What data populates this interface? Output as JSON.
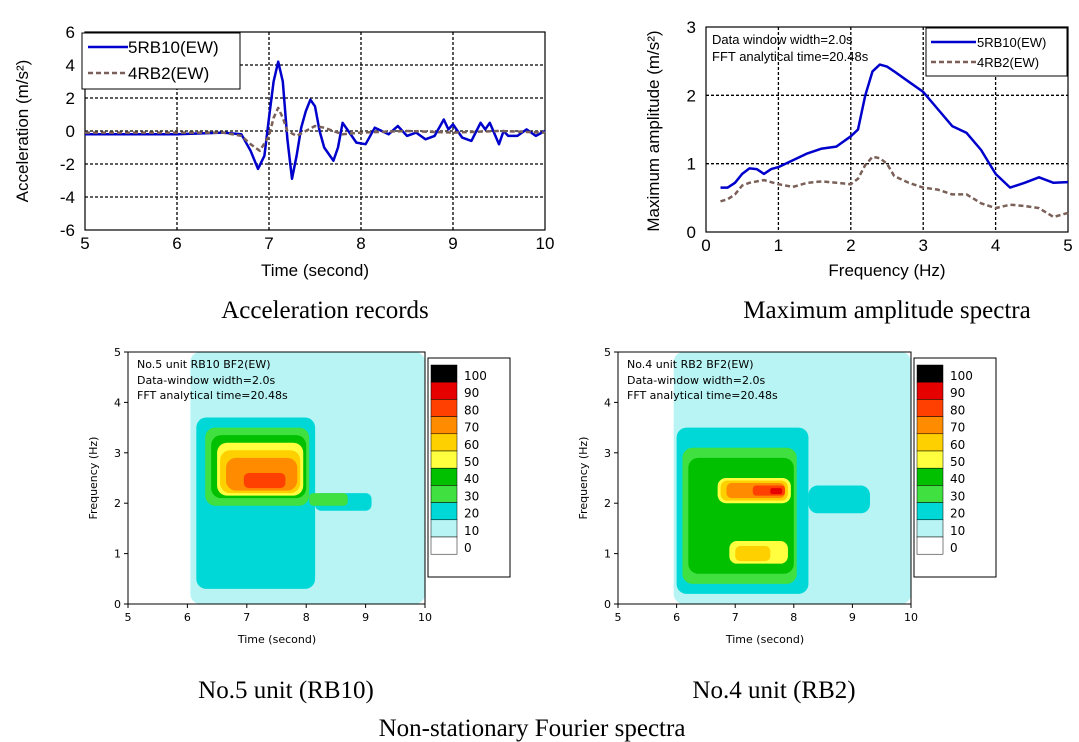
{
  "chart_data": [
    {
      "type": "line",
      "caption": "Acceleration records",
      "xlabel": "Time (second)",
      "ylabel": "Acceleration (m/s²)",
      "xlim": [
        5,
        10
      ],
      "ylim": [
        -6,
        6
      ],
      "xticks": [
        "5",
        "6",
        "7",
        "8",
        "9",
        "10"
      ],
      "yticks": [
        "6",
        "4",
        "2",
        "0",
        "-2",
        "-4",
        "-6"
      ],
      "grid": true,
      "legend_position": "top-left",
      "series": [
        {
          "name": "5RB10(EW)",
          "color": "#0000cc",
          "style": "solid",
          "x": [
            5.0,
            5.5,
            6.0,
            6.5,
            6.7,
            6.8,
            6.88,
            6.95,
            7.0,
            7.05,
            7.1,
            7.15,
            7.2,
            7.25,
            7.3,
            7.35,
            7.4,
            7.45,
            7.5,
            7.55,
            7.6,
            7.7,
            7.75,
            7.8,
            7.85,
            7.95,
            8.05,
            8.15,
            8.3,
            8.4,
            8.5,
            8.6,
            8.7,
            8.8,
            8.9,
            8.95,
            9.0,
            9.1,
            9.2,
            9.3,
            9.35,
            9.4,
            9.5,
            9.55,
            9.6,
            9.7,
            9.8,
            9.9,
            10.0
          ],
          "y": [
            -0.2,
            -0.2,
            -0.2,
            -0.1,
            -0.2,
            -1.2,
            -2.3,
            -1.5,
            0.8,
            3.0,
            4.2,
            3.0,
            -0.5,
            -2.9,
            -1.5,
            0.2,
            1.2,
            1.9,
            1.5,
            0.0,
            -1.0,
            -1.8,
            -1.0,
            0.5,
            0.1,
            -0.7,
            -0.8,
            0.2,
            -0.2,
            0.3,
            -0.3,
            -0.1,
            -0.5,
            -0.3,
            0.7,
            0.1,
            0.4,
            -0.4,
            -0.6,
            0.5,
            0.1,
            0.5,
            -0.8,
            0.0,
            -0.3,
            -0.3,
            0.1,
            -0.3,
            0.0
          ]
        },
        {
          "name": "4RB2(EW)",
          "color": "#7a6058",
          "style": "dashed",
          "x": [
            5.0,
            6.0,
            6.5,
            6.7,
            6.8,
            6.9,
            7.0,
            7.05,
            7.1,
            7.15,
            7.2,
            7.3,
            7.4,
            7.5,
            7.6,
            7.8,
            8.0,
            8.5,
            9.0,
            9.5,
            10.0
          ],
          "y": [
            -0.1,
            -0.1,
            -0.1,
            -0.3,
            -0.8,
            -1.2,
            -0.3,
            0.8,
            1.4,
            0.8,
            0.0,
            -0.3,
            0.0,
            0.3,
            0.2,
            -0.2,
            -0.1,
            0.0,
            -0.1,
            0.0,
            -0.1
          ]
        }
      ]
    },
    {
      "type": "line",
      "caption": "Maximum amplitude spectra",
      "xlabel": "Frequency (Hz)",
      "ylabel": "Maximum amplitude (m/s²)",
      "xlim": [
        0,
        5
      ],
      "ylim": [
        0,
        3
      ],
      "xticks": [
        "0",
        "1",
        "2",
        "3",
        "4",
        "5"
      ],
      "yticks": [
        "3",
        "2",
        "1",
        "0"
      ],
      "grid": true,
      "annotations": [
        "Data window width=2.0s",
        "FFT analytical time=20.48s"
      ],
      "legend_position": "top-right",
      "series": [
        {
          "name": "5RB10(EW)",
          "color": "#0000cc",
          "style": "solid",
          "x": [
            0.2,
            0.3,
            0.4,
            0.5,
            0.6,
            0.7,
            0.8,
            0.9,
            1.0,
            1.2,
            1.4,
            1.6,
            1.8,
            2.0,
            2.1,
            2.2,
            2.3,
            2.4,
            2.5,
            2.6,
            2.8,
            3.0,
            3.2,
            3.4,
            3.6,
            3.8,
            4.0,
            4.2,
            4.4,
            4.6,
            4.8,
            5.0
          ],
          "y": [
            0.65,
            0.65,
            0.72,
            0.85,
            0.93,
            0.92,
            0.85,
            0.92,
            0.95,
            1.05,
            1.15,
            1.22,
            1.25,
            1.4,
            1.5,
            2.0,
            2.35,
            2.45,
            2.42,
            2.35,
            2.2,
            2.05,
            1.8,
            1.55,
            1.45,
            1.2,
            0.85,
            0.65,
            0.72,
            0.8,
            0.72,
            0.73
          ]
        },
        {
          "name": "4RB2(EW)",
          "color": "#7a6058",
          "style": "dashed",
          "x": [
            0.2,
            0.3,
            0.4,
            0.5,
            0.6,
            0.8,
            1.0,
            1.2,
            1.4,
            1.6,
            1.8,
            2.0,
            2.1,
            2.2,
            2.3,
            2.4,
            2.5,
            2.6,
            2.8,
            3.0,
            3.2,
            3.4,
            3.6,
            3.8,
            4.0,
            4.2,
            4.4,
            4.6,
            4.8,
            5.0
          ],
          "y": [
            0.45,
            0.48,
            0.55,
            0.68,
            0.72,
            0.76,
            0.7,
            0.66,
            0.72,
            0.74,
            0.72,
            0.7,
            0.78,
            0.98,
            1.1,
            1.08,
            1.0,
            0.82,
            0.72,
            0.65,
            0.62,
            0.55,
            0.55,
            0.42,
            0.35,
            0.4,
            0.38,
            0.35,
            0.22,
            0.28
          ]
        }
      ]
    },
    {
      "type": "heatmap",
      "caption": "No.5 unit (RB10)",
      "annotations": [
        "No.5 unit RB10 BF2(EW)",
        "Data-window width=2.0s",
        "FFT analytical time=20.48s"
      ],
      "xlabel": "Time (second)",
      "ylabel": "Frequency (Hz)",
      "xlim": [
        5,
        10
      ],
      "ylim": [
        0,
        5
      ],
      "xticks": [
        "5",
        "6",
        "7",
        "8",
        "9",
        "10"
      ],
      "yticks": [
        "5",
        "4",
        "3",
        "2",
        "1",
        "0"
      ],
      "levels": [
        "100",
        "90",
        "80",
        "70",
        "60",
        "50",
        "40",
        "30",
        "20",
        "10",
        "0"
      ],
      "level_colors": [
        "#000000",
        "#e60000",
        "#ff4000",
        "#ff8c00",
        "#ffd000",
        "#ffff40",
        "#00c000",
        "#40e040",
        "#00d8d8",
        "#b8f4f4",
        "#ffffff"
      ],
      "regions": [
        {
          "level": 10,
          "t": [
            6.05,
            10.0
          ],
          "f": [
            0.0,
            5.0
          ]
        },
        {
          "level": 20,
          "t": [
            6.15,
            8.15
          ],
          "f": [
            0.3,
            3.7
          ]
        },
        {
          "level": 20,
          "t": [
            8.15,
            9.1
          ],
          "f": [
            1.85,
            2.2
          ]
        },
        {
          "level": 30,
          "t": [
            6.3,
            8.05
          ],
          "f": [
            1.95,
            3.5
          ]
        },
        {
          "level": 30,
          "t": [
            8.05,
            8.7
          ],
          "f": [
            1.95,
            2.2
          ]
        },
        {
          "level": 40,
          "t": [
            6.4,
            8.0
          ],
          "f": [
            2.1,
            3.35
          ]
        },
        {
          "level": 50,
          "t": [
            6.5,
            7.95
          ],
          "f": [
            2.15,
            3.2
          ]
        },
        {
          "level": 60,
          "t": [
            6.55,
            7.9
          ],
          "f": [
            2.2,
            3.05
          ]
        },
        {
          "level": 70,
          "t": [
            6.65,
            7.85
          ],
          "f": [
            2.25,
            2.9
          ]
        },
        {
          "level": 80,
          "t": [
            6.95,
            7.65
          ],
          "f": [
            2.3,
            2.6
          ]
        }
      ]
    },
    {
      "type": "heatmap",
      "caption": "No.4 unit (RB2)",
      "annotations": [
        "No.4 unit RB2 BF2(EW)",
        "Data-window width=2.0s",
        "FFT analytical time=20.48s"
      ],
      "xlabel": "Time (second)",
      "ylabel": "Frequency (Hz)",
      "xlim": [
        5,
        10
      ],
      "ylim": [
        0,
        5
      ],
      "xticks": [
        "5",
        "6",
        "7",
        "8",
        "9",
        "10"
      ],
      "yticks": [
        "5",
        "4",
        "3",
        "2",
        "1",
        "0"
      ],
      "levels": [
        "100",
        "90",
        "80",
        "70",
        "60",
        "50",
        "40",
        "30",
        "20",
        "10",
        "0"
      ],
      "level_colors": [
        "#000000",
        "#e60000",
        "#ff4000",
        "#ff8c00",
        "#ffd000",
        "#ffff40",
        "#00c000",
        "#40e040",
        "#00d8d8",
        "#b8f4f4",
        "#ffffff"
      ],
      "regions": [
        {
          "level": 10,
          "t": [
            5.95,
            10.0
          ],
          "f": [
            0.0,
            5.0
          ]
        },
        {
          "level": 20,
          "t": [
            6.0,
            8.25
          ],
          "f": [
            0.2,
            3.5
          ]
        },
        {
          "level": 20,
          "t": [
            8.25,
            9.3
          ],
          "f": [
            1.8,
            2.35
          ]
        },
        {
          "level": 30,
          "t": [
            6.1,
            8.05
          ],
          "f": [
            0.4,
            3.1
          ]
        },
        {
          "level": 40,
          "t": [
            6.2,
            8.0
          ],
          "f": [
            0.6,
            2.9
          ]
        },
        {
          "level": 50,
          "t": [
            6.9,
            7.9
          ],
          "f": [
            0.8,
            1.25
          ]
        },
        {
          "level": 60,
          "t": [
            7.0,
            7.6
          ],
          "f": [
            0.85,
            1.15
          ]
        },
        {
          "level": 50,
          "t": [
            6.7,
            7.95
          ],
          "f": [
            2.0,
            2.5
          ]
        },
        {
          "level": 60,
          "t": [
            6.75,
            7.9
          ],
          "f": [
            2.05,
            2.45
          ]
        },
        {
          "level": 70,
          "t": [
            6.85,
            7.85
          ],
          "f": [
            2.1,
            2.4
          ]
        },
        {
          "level": 80,
          "t": [
            7.3,
            7.85
          ],
          "f": [
            2.15,
            2.35
          ]
        },
        {
          "level": 90,
          "t": [
            7.6,
            7.8
          ],
          "f": [
            2.18,
            2.3
          ]
        }
      ]
    }
  ],
  "figure_caption": "Non-stationary Fourier spectra"
}
